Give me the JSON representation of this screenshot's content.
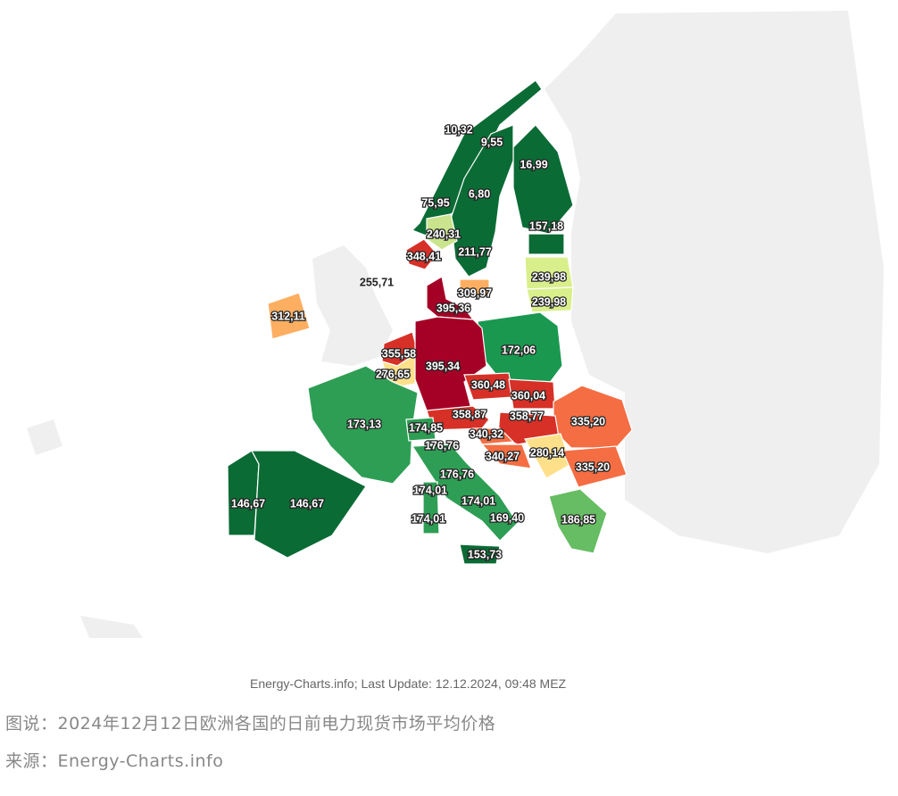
{
  "map": {
    "regions": [
      {
        "label": "10,32",
        "color": "#0b6b35"
      },
      {
        "label": "9,55",
        "color": "#0b6b35"
      },
      {
        "label": "16,99",
        "color": "#0b6b35"
      },
      {
        "label": "6,80",
        "color": "#0b6b35"
      },
      {
        "label": "75,95",
        "color": "#0b6b35"
      },
      {
        "label": "240,31",
        "color": "#c9e48d"
      },
      {
        "label": "211,77",
        "color": "#a6d96a"
      },
      {
        "label": "348,41",
        "color": "#d73027"
      },
      {
        "label": "157,18",
        "color": "#0b6b35"
      },
      {
        "label": "239,98",
        "color": "#d9ef8b"
      },
      {
        "label": "239,98",
        "color": "#d9ef8b"
      },
      {
        "label": "255,71",
        "color": "#f2f2f2"
      },
      {
        "label": "309,97",
        "color": "#fdae61"
      },
      {
        "label": "395,36",
        "color": "#a50026"
      },
      {
        "label": "312,11",
        "color": "#fdae61"
      },
      {
        "label": "172,06",
        "color": "#1a9850"
      },
      {
        "label": "355,58",
        "color": "#d73027"
      },
      {
        "label": "276,65",
        "color": "#fee08b"
      },
      {
        "label": "395,34",
        "color": "#a50026"
      },
      {
        "label": "173,13",
        "color": "#2e9e55"
      },
      {
        "label": "360,48",
        "color": "#d73027"
      },
      {
        "label": "360,04",
        "color": "#d73027"
      },
      {
        "label": "335,20",
        "color": "#f46d43"
      },
      {
        "label": "358,87",
        "color": "#d73027"
      },
      {
        "label": "358,77",
        "color": "#d73027"
      },
      {
        "label": "174,85",
        "color": "#2e9e55"
      },
      {
        "label": "340,32",
        "color": "#f46d43"
      },
      {
        "label": "280,14",
        "color": "#fee08b"
      },
      {
        "label": "176,76",
        "color": "#2e9e55"
      },
      {
        "label": "340,27",
        "color": "#f46d43"
      },
      {
        "label": "335,20",
        "color": "#f46d43"
      },
      {
        "label": "176,76",
        "color": "#2e9e55"
      },
      {
        "label": "174,01",
        "color": "#2e9e55"
      },
      {
        "label": "174,01",
        "color": "#2e9e55"
      },
      {
        "label": "146,67",
        "color": "#0b6b35"
      },
      {
        "label": "146,67",
        "color": "#0b6b35"
      },
      {
        "label": "169,40",
        "color": "#2e9e55"
      },
      {
        "label": "186,85",
        "color": "#66bd63"
      },
      {
        "label": "174,01",
        "color": "#2e9e55"
      },
      {
        "label": "153,73",
        "color": "#0b6b35"
      }
    ],
    "update": "Energy-Charts.info; Last Update: 12.12.2024, 09:48 MEZ"
  },
  "caption": "图说：2024年12月12日欧洲各国的日前电力现货市场平均价格",
  "source": "来源：Energy-Charts.info"
}
